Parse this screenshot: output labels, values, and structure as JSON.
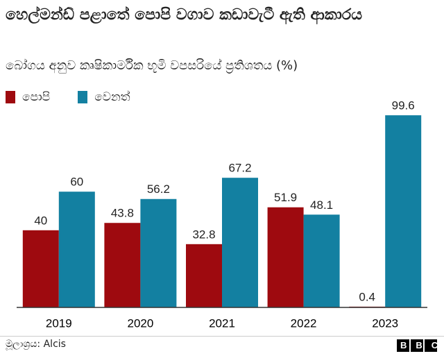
{
  "chart_data": {
    "type": "bar",
    "title": "හෙල්මන්ඩ් පළාතේ පොපි වගාව කඩාවැටී ඇති ආකාරය",
    "subtitle": "බෝගය අනුව කෘෂිකාර්මික භූමි වපසරියේ ප්‍රතිශතය (%)",
    "categories": [
      "2019",
      "2020",
      "2021",
      "2022",
      "2023"
    ],
    "series": [
      {
        "name": "පොපි",
        "color": "#9e0a0f",
        "values": [
          40,
          43.8,
          32.8,
          51.9,
          0.4
        ]
      },
      {
        "name": "වෙනත්",
        "color": "#1380a1",
        "values": [
          60,
          56.2,
          67.2,
          48.1,
          99.6
        ]
      }
    ],
    "ylim": [
      0,
      100
    ],
    "source": "මූලාශ්‍රය: Alcis",
    "logo": "BBC"
  }
}
